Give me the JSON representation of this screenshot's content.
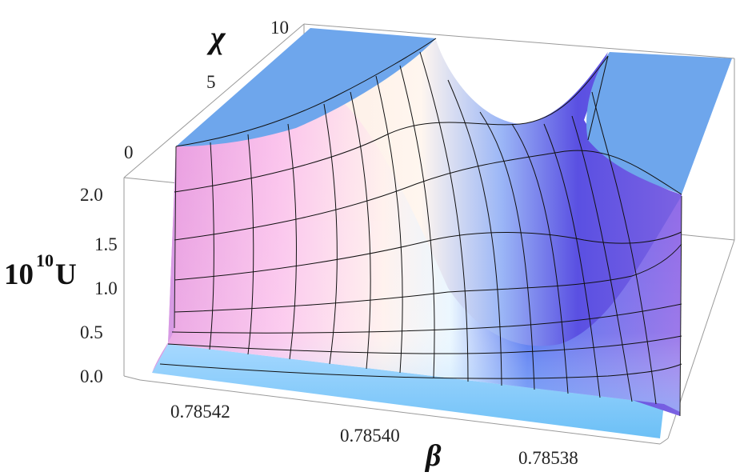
{
  "chart_data": {
    "type": "surface3d",
    "title": "",
    "axes": {
      "x": {
        "label": "β",
        "ticks": [
          "0.78542",
          "0.78540",
          "0.78538"
        ],
        "range": [
          0.78537,
          0.78543
        ],
        "direction": "decreasing-left-to-right"
      },
      "y": {
        "label": "χ",
        "ticks": [
          "0",
          "5",
          "10"
        ],
        "range": [
          0,
          10
        ]
      },
      "z": {
        "label_base": "10",
        "label_exp": "10",
        "label_var": "U",
        "ticks": [
          "0.0",
          "0.5",
          "1.0",
          "1.5",
          "2.0"
        ],
        "range": [
          0,
          2.2
        ],
        "clipped_at": 2.2
      }
    },
    "surface": {
      "description_points": [
        {
          "beta": 0.78542,
          "chi": 0,
          "U_scaled": 0.0
        },
        {
          "beta": 0.785425,
          "chi": 0,
          "U_scaled": 2.2
        },
        {
          "beta": 0.7854,
          "chi": 0,
          "U_scaled": 0.0
        },
        {
          "beta": 0.7854,
          "chi": 10,
          "U_scaled": 1.9
        },
        {
          "beta": 0.78538,
          "chi": 0,
          "U_scaled": 0.0
        },
        {
          "beta": 0.785375,
          "chi": 0,
          "U_scaled": 2.2
        }
      ],
      "min_valley_beta": 0.7854,
      "grid": true,
      "colors": {
        "top_clip": "#6ea6ec",
        "left": "#f0a8e6",
        "center": "#ffffff",
        "right": "#5a4ee8",
        "floor": "#7cc4f4"
      }
    },
    "box": true
  }
}
